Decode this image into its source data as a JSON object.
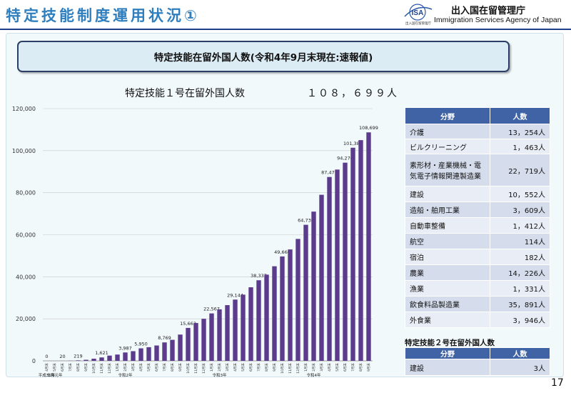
{
  "header": {
    "title": "特定技能制度運用状況①",
    "logo_text": "ISA",
    "logo_subtitle": "出入国在留管理庁",
    "agency_ja": "出入国在留管理庁",
    "agency_en": "Immigration Services Agency of Japan"
  },
  "banner": "特定技能在留外国人数(令和4年9月末現在:速報値)",
  "chart_heading": "特定技能１号在留外国人数",
  "chart_total": "１０８，６９９人",
  "chart_data": {
    "type": "bar",
    "title": "特定技能１号在留外国人数",
    "xlabel": "",
    "ylabel": "",
    "ylim": [
      0,
      120000
    ],
    "yticks": [
      "0",
      "20,000",
      "40,000",
      "60,000",
      "80,000",
      "100,000",
      "120,000"
    ],
    "grid": true,
    "bar_color": "#5c3b8c",
    "categories": [
      "4月末",
      "5月末",
      "6月末",
      "7月末",
      "8月末",
      "9月末",
      "10月末",
      "11月末",
      "12月末",
      "1月末",
      "2月末",
      "3月末",
      "4月末",
      "5月末",
      "6月末",
      "7月末",
      "8月末",
      "9月末",
      "10月末",
      "11月末",
      "12月末",
      "1月末",
      "2月末",
      "3月末",
      "4月末",
      "5月末",
      "6月末",
      "7月末",
      "8月末",
      "9月末",
      "10月末",
      "11月末",
      "12月末",
      "1月末",
      "2月末",
      "3月末",
      "4月末",
      "5月末",
      "6月末",
      "7月末",
      "8月末",
      "9月末"
    ],
    "values": [
      0,
      0,
      20,
      60,
      219,
      500,
      1019,
      1621,
      2500,
      3000,
      3987,
      4600,
      5950,
      6500,
      7300,
      8769,
      10000,
      12500,
      15663,
      18000,
      20000,
      22567,
      24500,
      26500,
      29144,
      31500,
      35000,
      38337,
      41000,
      45000,
      49666,
      53000,
      58000,
      64730,
      71000,
      79000,
      87471,
      91000,
      94276,
      101388,
      105000,
      108699
    ],
    "data_labels": [
      "0",
      "",
      "20",
      "",
      "219",
      "",
      "",
      "1,621",
      "",
      "",
      "3,987",
      "",
      "5,950",
      "",
      "",
      "8,769",
      "",
      "",
      "15,663",
      "",
      "",
      "22,567",
      "",
      "",
      "29,144",
      "",
      "",
      "38,337",
      "",
      "",
      "49,666",
      "",
      "",
      "64,730",
      "",
      "",
      "87,471",
      "",
      "94,276",
      "101,388",
      "",
      "108,699"
    ],
    "era_labels": [
      {
        "index": 0,
        "text": "平成31年"
      },
      {
        "index": 1,
        "text": "令和元年"
      },
      {
        "index": 10,
        "text": "令和2年"
      },
      {
        "index": 22,
        "text": "令和3年"
      },
      {
        "index": 34,
        "text": "令和4年"
      }
    ]
  },
  "table1": {
    "headers": [
      "分野",
      "人数"
    ],
    "rows": [
      [
        "介護",
        "13，254人"
      ],
      [
        "ビルクリーニング",
        "1，463人"
      ],
      [
        "素形材・産業機械・電気電子情報関連製造業",
        "22，719人"
      ],
      [
        "建設",
        "10，552人"
      ],
      [
        "造船・舶用工業",
        "3，609人"
      ],
      [
        "自動車整備",
        "1，412人"
      ],
      [
        "航空",
        "114人"
      ],
      [
        "宿泊",
        "182人"
      ],
      [
        "農業",
        "14，226人"
      ],
      [
        "漁業",
        "1，331人"
      ],
      [
        "飲食料品製造業",
        "35，891人"
      ],
      [
        "外食業",
        "3，946人"
      ]
    ]
  },
  "table2": {
    "caption": "特定技能２号在留外国人数",
    "headers": [
      "分野",
      "人数"
    ],
    "rows": [
      [
        "建設",
        "3人"
      ]
    ]
  },
  "page_number": "17"
}
